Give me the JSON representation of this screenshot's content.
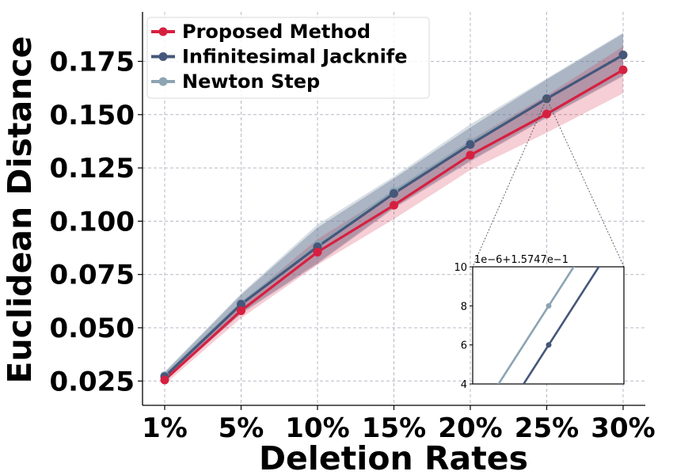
{
  "chart_data": {
    "type": "line",
    "title": "",
    "xlabel": "Deletion Rates",
    "ylabel": "Euclidean Distance",
    "categories": [
      "1%",
      "5%",
      "10%",
      "15%",
      "20%",
      "25%",
      "30%"
    ],
    "yticks": [
      "0.025",
      "0.050",
      "0.075",
      "0.100",
      "0.125",
      "0.150",
      "0.175"
    ],
    "ylim": [
      0.012,
      0.195
    ],
    "grid": true,
    "legend_position": "top-left",
    "series": [
      {
        "name": "Proposed Method",
        "color": "#d62040",
        "values": [
          0.0255,
          0.058,
          0.0855,
          0.1075,
          0.131,
          0.1503,
          0.171
        ],
        "band_lower": [
          0.0235,
          0.0545,
          0.0795,
          0.101,
          0.124,
          0.1415,
          0.16
        ],
        "band_upper": [
          0.0275,
          0.0615,
          0.0915,
          0.114,
          0.138,
          0.159,
          0.182
        ]
      },
      {
        "name": "Infinitesimal Jacknife",
        "color": "#45577a",
        "values": [
          0.027,
          0.061,
          0.088,
          0.113,
          0.136,
          0.1575,
          0.178
        ],
        "band_lower": [
          0.025,
          0.0565,
          0.08,
          0.106,
          0.128,
          0.1485,
          0.168
        ],
        "band_upper": [
          0.029,
          0.0655,
          0.097,
          0.12,
          0.144,
          0.1665,
          0.188
        ]
      },
      {
        "name": "Newton Step",
        "color": "#8da4b3",
        "values": [
          0.0275,
          0.0615,
          0.089,
          0.114,
          0.137,
          0.1575,
          0.178
        ],
        "band_lower": [
          0.0255,
          0.057,
          0.0805,
          0.1065,
          0.1285,
          0.149,
          0.1685
        ],
        "band_upper": [
          0.0295,
          0.066,
          0.0985,
          0.121,
          0.1455,
          0.167,
          0.1885
        ]
      }
    ],
    "inset": {
      "offset_label": "1e−6+1.5747e−1",
      "yticks": [
        "4",
        "6",
        "8",
        "10"
      ],
      "ylim": [
        4,
        10
      ],
      "points": [
        {
          "series": "Newton Step",
          "y": 8
        },
        {
          "series": "Infinitesimal Jacknife",
          "y": 6
        }
      ]
    }
  }
}
